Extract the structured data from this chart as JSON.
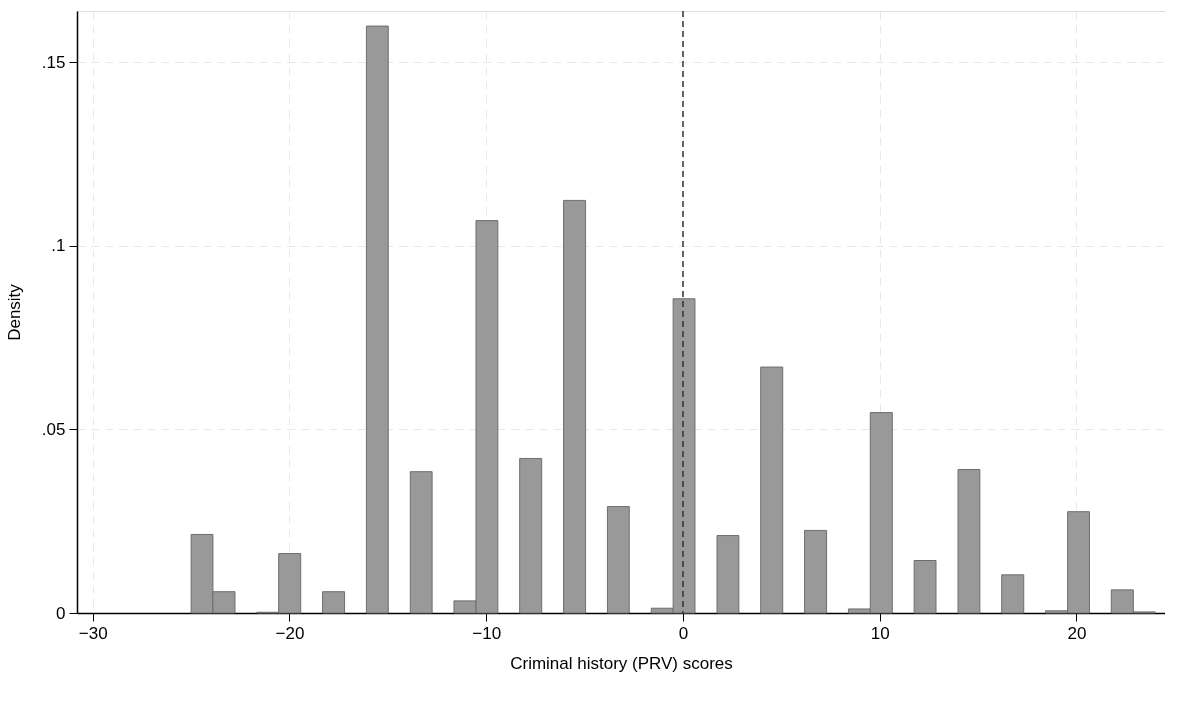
{
  "chart_data": {
    "type": "histogram",
    "xlabel": "Criminal history (PRV) scores",
    "ylabel": "Density",
    "bins": [
      -25,
      -23.89,
      -22.77,
      -21.66,
      -20.55,
      -19.43,
      -18.32,
      -17.2,
      -16.09,
      -14.98,
      -13.86,
      -12.75,
      -11.64,
      -10.52,
      -9.41,
      -8.3,
      -7.18,
      -6.07,
      -4.95,
      -3.84,
      -2.73,
      -1.61,
      -0.5,
      0.61,
      1.73,
      2.84,
      3.95,
      5.07,
      6.18,
      7.3,
      8.41,
      9.52,
      10.64,
      11.75,
      12.86,
      13.98,
      15.09,
      16.2,
      17.32,
      18.43,
      19.55,
      20.66,
      21.77,
      22.89,
      24
    ],
    "values": [
      0.0214,
      0.0058,
      0,
      0.0002,
      0.0162,
      0,
      0.0058,
      0,
      0.1599,
      0,
      0.0385,
      0,
      0.0033,
      0.1069,
      0,
      0.0421,
      0,
      0.1124,
      0,
      0.029,
      0,
      0.0013,
      0.0856,
      0,
      0.0211,
      0,
      0.067,
      0,
      0.0225,
      0,
      0.0011,
      0.0546,
      0,
      0.0143,
      0,
      0.0391,
      0,
      0.0104,
      0,
      0.0006,
      0.0276,
      0,
      0.0063,
      0.0003
    ],
    "color": "#999999",
    "xlim": [
      -30.8,
      24.5
    ],
    "xticks": [
      -30,
      -20,
      -10,
      0,
      10,
      20
    ],
    "ylim": [
      0,
      0.164
    ],
    "yticks": [
      {
        "value": 0,
        "label": "0"
      },
      {
        "value": 0.05,
        "label": ".05"
      },
      {
        "value": 0.1,
        "label": ".1"
      },
      {
        "value": 0.15,
        "label": ".15"
      }
    ],
    "grid": true,
    "ref_lines": [
      {
        "axis": "x",
        "value": 0,
        "color": "#333333",
        "line_style": "dashed"
      }
    ]
  }
}
